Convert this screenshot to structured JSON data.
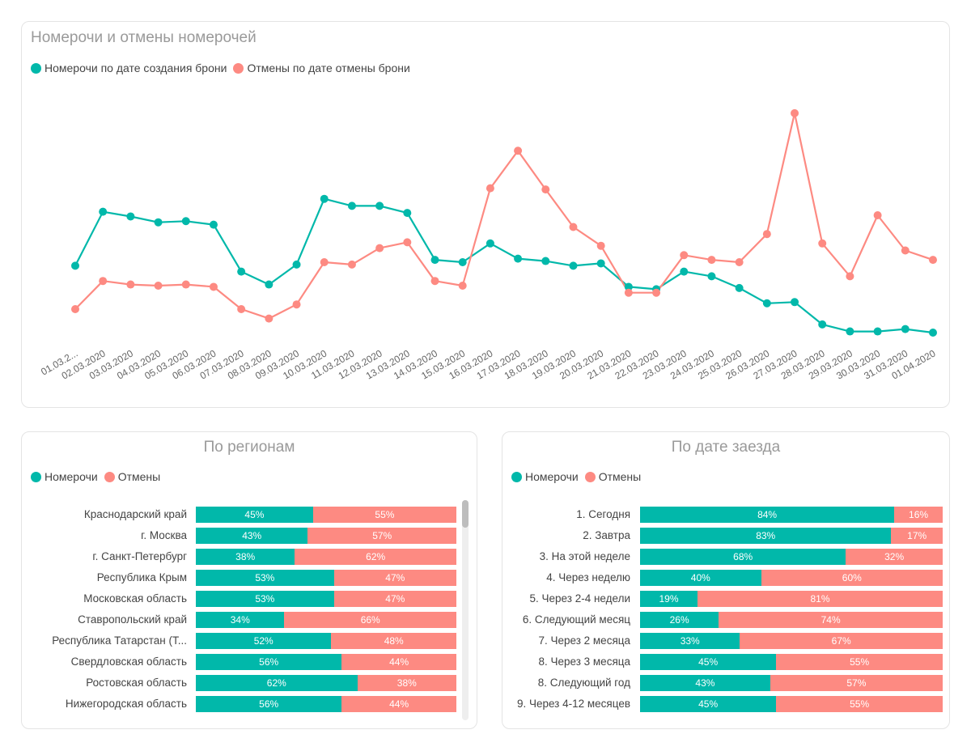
{
  "colors": {
    "primary": "#01B8AA",
    "secondary": "#FD8A82"
  },
  "chart_data": [
    {
      "type": "line",
      "title": "Номерочи и отмены номерочей",
      "legend_placement": "top-left",
      "grid": false,
      "y_axis_visible": false,
      "x": [
        "01.03.2...",
        "02.03.2020",
        "03.03.2020",
        "04.03.2020",
        "05.03.2020",
        "06.03.2020",
        "07.03.2020",
        "08.03.2020",
        "09.03.2020",
        "10.03.2020",
        "11.03.2020",
        "12.03.2020",
        "13.03.2020",
        "14.03.2020",
        "15.03.2020",
        "16.03.2020",
        "17.03.2020",
        "18.03.2020",
        "19.03.2020",
        "20.03.2020",
        "21.03.2020",
        "22.03.2020",
        "23.03.2020",
        "24.03.2020",
        "25.03.2020",
        "26.03.2020",
        "27.03.2020",
        "28.03.2020",
        "29.03.2020",
        "30.03.2020",
        "31.03.2020",
        "01.04.2020"
      ],
      "series": [
        {
          "name": "Номерочи по дате создания брони",
          "color": "#01B8AA",
          "values": [
            28.5,
            51.5,
            49.5,
            47,
            47.5,
            46,
            26,
            20.5,
            29,
            57,
            54,
            54,
            51,
            31,
            30,
            38,
            31.5,
            30.5,
            28.5,
            29.5,
            19.5,
            18.5,
            26,
            24,
            19,
            12.5,
            13,
            3.5,
            0.5,
            0.5,
            1.5,
            0
          ]
        },
        {
          "name": "Отмены по дате отмены брони",
          "color": "#FD8A82",
          "values": [
            10,
            22,
            20.5,
            20,
            20.5,
            19.5,
            10,
            6,
            12,
            30,
            29,
            36,
            38.5,
            22,
            20,
            61.5,
            77.5,
            61,
            45,
            37,
            17,
            17,
            33,
            31,
            30,
            42,
            93.5,
            38,
            24,
            50,
            35,
            31
          ]
        }
      ]
    },
    {
      "type": "bar",
      "orientation": "horizontal-stacked-100",
      "title": "По регионам",
      "legend_placement": "top-left",
      "categories": [
        "Краснодарский край",
        "г. Москва",
        "г. Санкт-Петербург",
        "Республика Крым",
        "Московская область",
        "Ставропольский край",
        "Республика Татарстан (Т...",
        "Свердловская область",
        "Ростовская область",
        "Нижегородская область"
      ],
      "series": [
        {
          "name": "Номерочи",
          "color": "#01B8AA",
          "values": [
            45,
            43,
            38,
            53,
            53,
            34,
            52,
            56,
            62,
            56
          ],
          "labels": [
            "45%",
            "43%",
            "38%",
            "53%",
            "53%",
            "34%",
            "52%",
            "56%",
            "62%",
            "56%"
          ]
        },
        {
          "name": "Отмены",
          "color": "#FD8A82",
          "values": [
            55,
            57,
            62,
            47,
            47,
            66,
            48,
            44,
            38,
            44
          ],
          "labels": [
            "55%",
            "57%",
            "62%",
            "47%",
            "47%",
            "66%",
            "48%",
            "44%",
            "38%",
            "44%"
          ]
        }
      ]
    },
    {
      "type": "bar",
      "orientation": "horizontal-stacked-100",
      "title": "По дате заезда",
      "legend_placement": "top-left",
      "categories": [
        "1. Сегодня",
        "2. Завтра",
        "3. На этой неделе",
        "4. Через неделю",
        "5. Через 2-4 недели",
        "6. Следующий месяц",
        "7. Через 2 месяца",
        "8. Через 3 месяца",
        "8. Следующий год",
        "9. Через 4-12 месяцев"
      ],
      "series": [
        {
          "name": "Номерочи",
          "color": "#01B8AA",
          "values": [
            84,
            83,
            68,
            40,
            19,
            26,
            33,
            45,
            43,
            45
          ],
          "labels": [
            "84%",
            "83%",
            "68%",
            "40%",
            "19%",
            "26%",
            "33%",
            "45%",
            "43%",
            "45%"
          ]
        },
        {
          "name": "Отмены",
          "color": "#FD8A82",
          "values": [
            16,
            17,
            32,
            60,
            81,
            74,
            67,
            55,
            57,
            55
          ],
          "labels": [
            "16%",
            "17%",
            "32%",
            "60%",
            "81%",
            "74%",
            "67%",
            "55%",
            "57%",
            "55%"
          ]
        }
      ]
    }
  ]
}
